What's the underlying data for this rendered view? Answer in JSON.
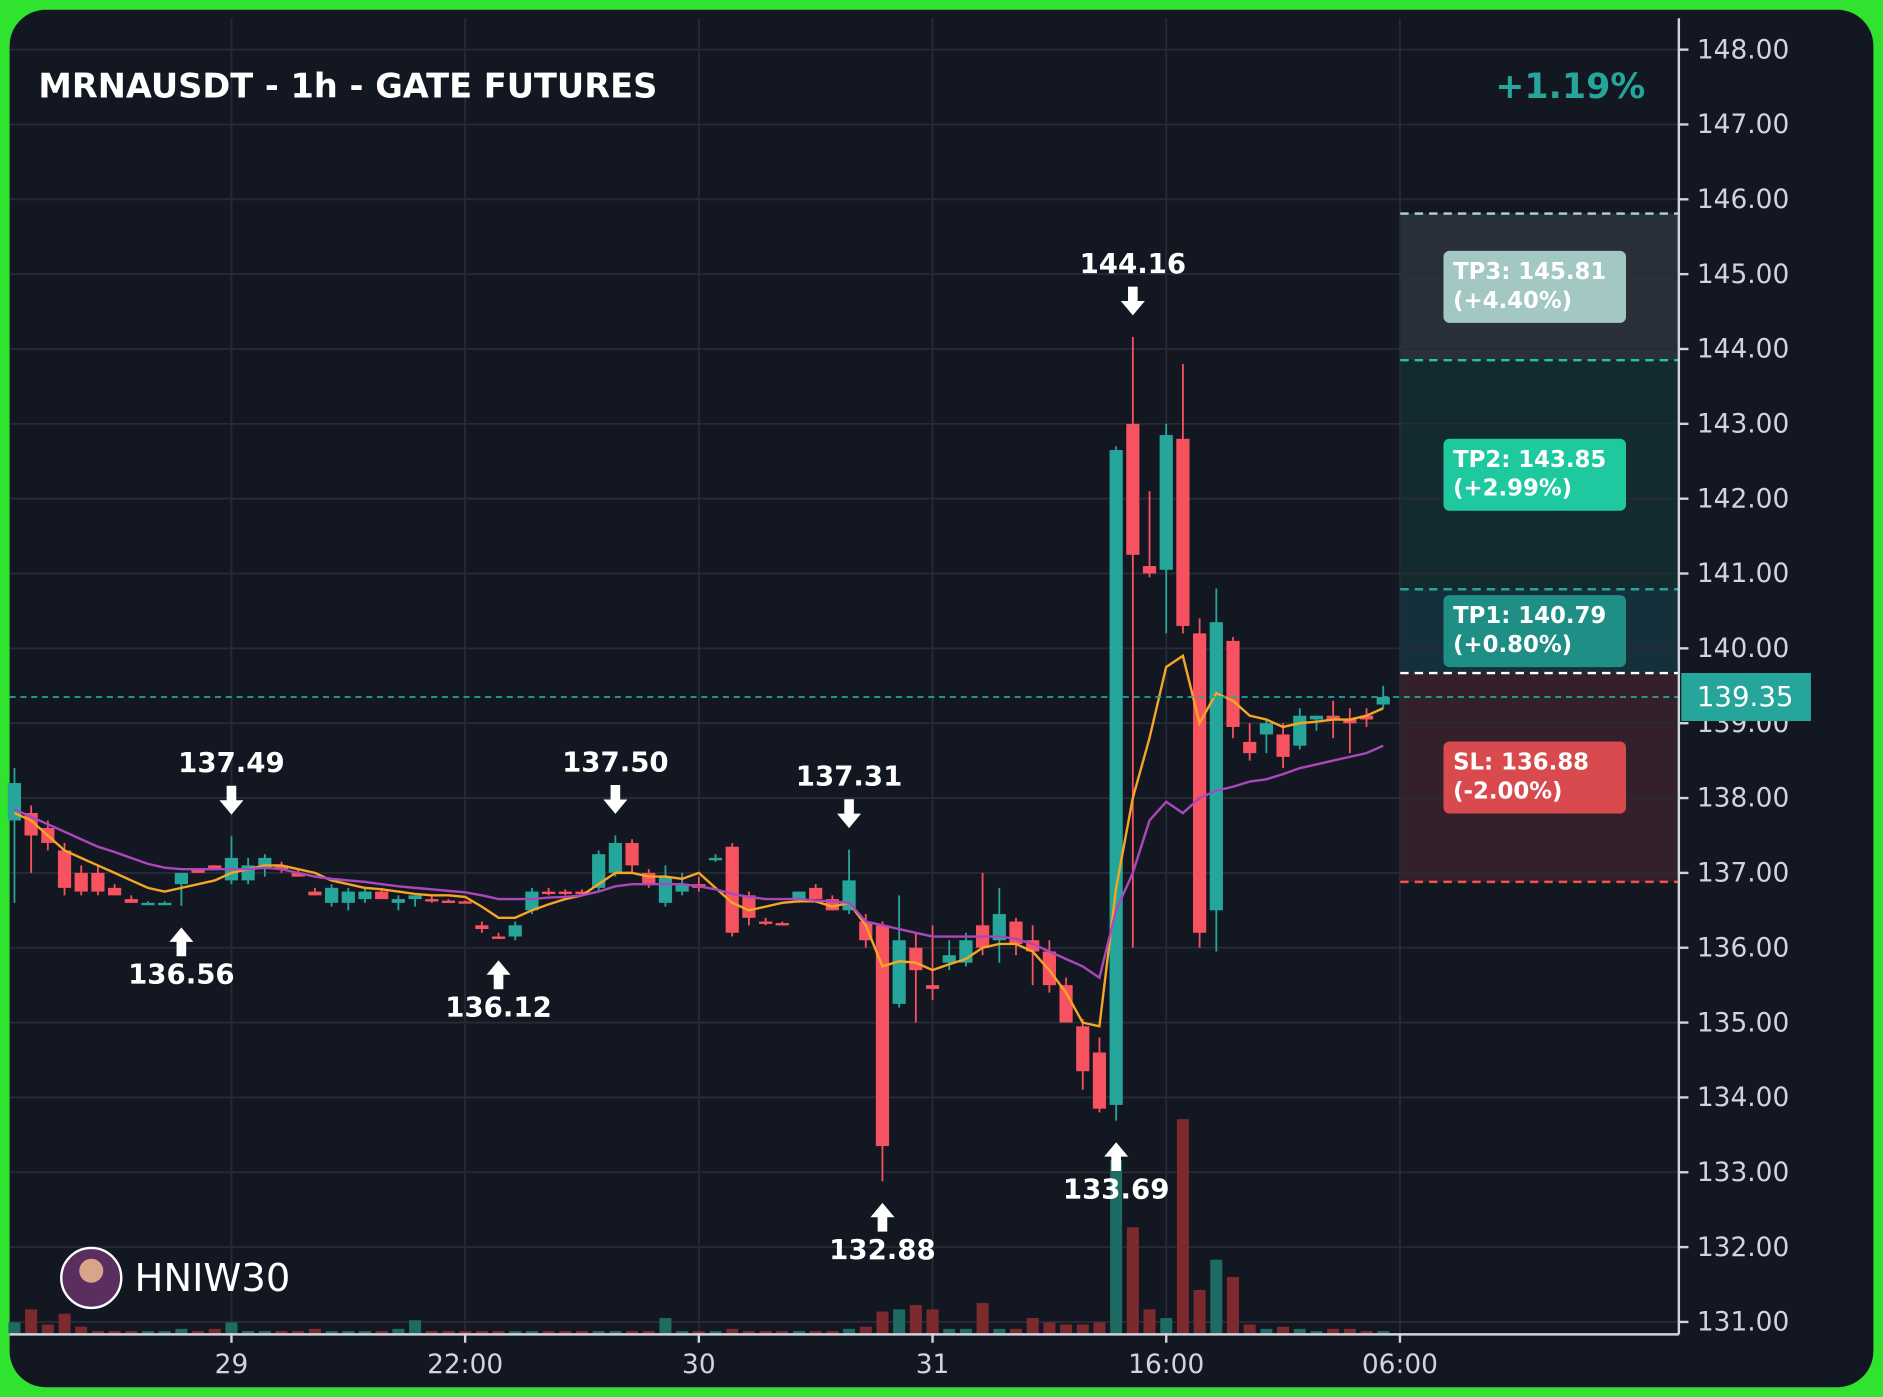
{
  "chart_data": {
    "type": "candlestick",
    "title": "MRNAUSDT - 1h - GATE FUTURES",
    "change": "+1.19%",
    "watermark": "HNIW30",
    "up_color": "#26a69a",
    "down_color": "#f7525f",
    "ylim": [
      130.85,
      148.42
    ],
    "xlim": [
      -0.29,
      99.71
    ],
    "grid": true,
    "yticks": [
      {
        "value": 131,
        "label": "131.00"
      },
      {
        "value": 132,
        "label": "132.00"
      },
      {
        "value": 133,
        "label": "133.00"
      },
      {
        "value": 134,
        "label": "134.00"
      },
      {
        "value": 135,
        "label": "135.00"
      },
      {
        "value": 136,
        "label": "136.00"
      },
      {
        "value": 137,
        "label": "137.00"
      },
      {
        "value": 138,
        "label": "138.00"
      },
      {
        "value": 139,
        "label": "139.00"
      },
      {
        "value": 140,
        "label": "140.00"
      },
      {
        "value": 141,
        "label": "141.00"
      },
      {
        "value": 142,
        "label": "142.00"
      },
      {
        "value": 143,
        "label": "143.00"
      },
      {
        "value": 144,
        "label": "144.00"
      },
      {
        "value": 145,
        "label": "145.00"
      },
      {
        "value": 146,
        "label": "146.00"
      },
      {
        "value": 147,
        "label": "147.00"
      },
      {
        "value": 148,
        "label": "148.00"
      }
    ],
    "xticks": [
      {
        "value": 13,
        "label": "29"
      },
      {
        "value": 27,
        "label": "22:00"
      },
      {
        "value": 41,
        "label": "30"
      },
      {
        "value": 55,
        "label": "31"
      },
      {
        "value": 69,
        "label": "16:00"
      },
      {
        "value": 83,
        "label": "06:00"
      }
    ],
    "ohlc": [
      [
        137.7,
        138.4,
        136.6,
        138.2
      ],
      [
        137.8,
        137.9,
        137.0,
        137.5
      ],
      [
        137.6,
        137.7,
        137.3,
        137.4
      ],
      [
        137.3,
        137.4,
        136.7,
        136.8
      ],
      [
        137.0,
        137.1,
        136.7,
        136.75
      ],
      [
        137.0,
        137.1,
        136.7,
        136.75
      ],
      [
        136.8,
        136.85,
        136.7,
        136.7
      ],
      [
        136.65,
        136.7,
        136.6,
        136.6
      ],
      [
        136.6,
        136.62,
        136.58,
        136.6
      ],
      [
        136.6,
        136.62,
        136.58,
        136.6
      ],
      [
        136.85,
        137.0,
        136.56,
        137.0
      ],
      [
        137.05,
        137.05,
        137.0,
        137.0
      ],
      [
        137.1,
        137.1,
        137.05,
        137.05
      ],
      [
        136.9,
        137.49,
        136.85,
        137.2
      ],
      [
        136.9,
        137.2,
        136.85,
        137.1
      ],
      [
        137.05,
        137.25,
        136.95,
        137.2
      ],
      [
        137.1,
        137.15,
        137.0,
        137.05
      ],
      [
        137.0,
        137.05,
        136.95,
        136.95
      ],
      [
        136.75,
        136.8,
        136.7,
        136.7
      ],
      [
        136.6,
        136.85,
        136.55,
        136.8
      ],
      [
        136.6,
        136.8,
        136.5,
        136.75
      ],
      [
        136.65,
        136.8,
        136.6,
        136.75
      ],
      [
        136.75,
        136.8,
        136.65,
        136.65
      ],
      [
        136.6,
        136.7,
        136.5,
        136.65
      ],
      [
        136.65,
        136.7,
        136.55,
        136.7
      ],
      [
        136.65,
        136.7,
        136.6,
        136.62
      ],
      [
        136.63,
        136.65,
        136.6,
        136.62
      ],
      [
        136.62,
        136.63,
        136.6,
        136.6
      ],
      [
        136.3,
        136.35,
        136.2,
        136.25
      ],
      [
        136.15,
        136.2,
        136.12,
        136.12
      ],
      [
        136.15,
        136.35,
        136.1,
        136.3
      ],
      [
        136.5,
        136.8,
        136.45,
        136.75
      ],
      [
        136.75,
        136.8,
        136.7,
        136.72
      ],
      [
        136.75,
        136.78,
        136.7,
        136.72
      ],
      [
        136.75,
        136.78,
        136.72,
        136.73
      ],
      [
        136.8,
        137.3,
        136.75,
        137.25
      ],
      [
        137.0,
        137.5,
        136.95,
        137.4
      ],
      [
        137.4,
        137.45,
        137.0,
        137.1
      ],
      [
        137.0,
        137.05,
        136.8,
        136.85
      ],
      [
        136.6,
        137.1,
        136.55,
        136.95
      ],
      [
        136.75,
        137.0,
        136.7,
        136.85
      ],
      [
        136.85,
        136.95,
        136.75,
        136.8
      ],
      [
        137.2,
        137.25,
        137.15,
        137.2
      ],
      [
        137.35,
        137.4,
        136.15,
        136.2
      ],
      [
        136.7,
        136.75,
        136.3,
        136.4
      ],
      [
        136.35,
        136.4,
        136.3,
        136.32
      ],
      [
        136.33,
        136.35,
        136.3,
        136.32
      ],
      [
        136.65,
        136.75,
        136.6,
        136.75
      ],
      [
        136.8,
        136.85,
        136.65,
        136.65
      ],
      [
        136.65,
        136.7,
        136.5,
        136.5
      ],
      [
        136.5,
        137.31,
        136.45,
        136.9
      ],
      [
        136.35,
        136.45,
        136.0,
        136.1
      ],
      [
        136.3,
        136.35,
        132.88,
        133.35
      ],
      [
        135.25,
        136.7,
        135.2,
        136.1
      ],
      [
        136.0,
        136.2,
        135.0,
        135.7
      ],
      [
        135.5,
        136.3,
        135.3,
        135.45
      ],
      [
        135.8,
        136.1,
        135.7,
        135.9
      ],
      [
        135.8,
        136.2,
        135.75,
        136.1
      ],
      [
        136.3,
        137.0,
        135.9,
        136.0
      ],
      [
        136.1,
        136.8,
        135.8,
        136.45
      ],
      [
        136.35,
        136.4,
        135.9,
        136.05
      ],
      [
        136.1,
        136.3,
        135.5,
        135.95
      ],
      [
        135.95,
        136.1,
        135.4,
        135.5
      ],
      [
        135.5,
        135.6,
        135.0,
        135.0
      ],
      [
        134.95,
        135.05,
        134.1,
        134.35
      ],
      [
        134.6,
        134.8,
        133.8,
        133.85
      ],
      [
        133.9,
        142.7,
        133.69,
        142.65
      ],
      [
        143.0,
        144.16,
        136.0,
        141.25
      ],
      [
        141.1,
        142.1,
        140.95,
        141.0
      ],
      [
        141.05,
        143.0,
        140.2,
        142.85
      ],
      [
        142.8,
        143.8,
        140.2,
        140.3
      ],
      [
        140.2,
        140.4,
        136.0,
        136.2
      ],
      [
        136.5,
        140.8,
        135.95,
        140.35
      ],
      [
        140.1,
        140.15,
        138.8,
        138.95
      ],
      [
        138.75,
        139.0,
        138.5,
        138.6
      ],
      [
        138.85,
        139.05,
        138.6,
        139.0
      ],
      [
        138.85,
        139.0,
        138.4,
        138.55
      ],
      [
        138.7,
        139.2,
        138.65,
        139.1
      ],
      [
        139.05,
        139.1,
        138.9,
        139.1
      ],
      [
        139.1,
        139.3,
        138.8,
        139.05
      ],
      [
        139.05,
        139.2,
        138.6,
        139.0
      ],
      [
        139.1,
        139.2,
        138.95,
        139.05
      ],
      [
        139.25,
        139.5,
        139.2,
        139.35
      ]
    ],
    "volume": [
      10,
      22,
      8,
      18,
      6,
      2,
      2,
      2,
      2,
      2,
      4,
      2,
      4,
      10,
      2,
      2,
      2,
      2,
      4,
      2,
      2,
      2,
      2,
      4,
      12,
      2,
      2,
      2,
      2,
      2,
      2,
      2,
      2,
      2,
      2,
      2,
      2,
      2,
      2,
      14,
      2,
      2,
      2,
      4,
      2,
      2,
      2,
      2,
      2,
      2,
      4,
      6,
      20,
      22,
      26,
      22,
      4,
      4,
      28,
      4,
      4,
      14,
      10,
      8,
      8,
      10,
      160,
      98,
      22,
      14,
      198,
      40,
      68,
      52,
      8,
      4,
      6,
      4,
      2,
      4,
      4,
      2,
      2
    ],
    "lines": [
      {
        "color": "#f5a623",
        "values": [
          137.8,
          137.7,
          137.5,
          137.3,
          137.2,
          137.1,
          137.0,
          136.9,
          136.8,
          136.75,
          136.8,
          136.85,
          136.9,
          137.0,
          137.05,
          137.1,
          137.1,
          137.05,
          137.0,
          136.9,
          136.85,
          136.8,
          136.78,
          136.75,
          136.72,
          136.7,
          136.7,
          136.68,
          136.55,
          136.4,
          136.4,
          136.5,
          136.58,
          136.65,
          136.7,
          136.85,
          137.0,
          137.0,
          136.95,
          136.95,
          136.92,
          137.0,
          136.8,
          136.6,
          136.5,
          136.55,
          136.6,
          136.62,
          136.62,
          136.55,
          136.6,
          136.3,
          135.75,
          135.82,
          135.8,
          135.7,
          135.78,
          135.85,
          136.0,
          136.05,
          136.05,
          135.95,
          135.7,
          135.4,
          135.0,
          134.95,
          136.8,
          138.0,
          138.8,
          139.75,
          139.9,
          139.0,
          139.4,
          139.3,
          139.1,
          139.05,
          138.95,
          139.0,
          139.02,
          139.05,
          139.05,
          139.1,
          139.2
        ]
      },
      {
        "color": "#ab47bc",
        "values": [
          137.85,
          137.75,
          137.65,
          137.55,
          137.45,
          137.35,
          137.28,
          137.2,
          137.12,
          137.07,
          137.05,
          137.05,
          137.05,
          137.05,
          137.05,
          137.07,
          137.05,
          137.0,
          136.95,
          136.92,
          136.9,
          136.88,
          136.85,
          136.82,
          136.8,
          136.78,
          136.76,
          136.74,
          136.7,
          136.65,
          136.65,
          136.65,
          136.67,
          136.68,
          136.7,
          136.75,
          136.82,
          136.85,
          136.85,
          136.85,
          136.85,
          136.82,
          136.78,
          136.72,
          136.68,
          136.65,
          136.65,
          136.65,
          136.63,
          136.62,
          136.6,
          136.35,
          136.3,
          136.25,
          136.2,
          136.15,
          136.15,
          136.15,
          136.15,
          136.15,
          136.12,
          136.05,
          135.95,
          135.85,
          135.75,
          135.6,
          136.5,
          137.0,
          137.7,
          137.95,
          137.8,
          138.0,
          138.1,
          138.15,
          138.22,
          138.25,
          138.32,
          138.4,
          138.45,
          138.5,
          138.55,
          138.6,
          138.7
        ]
      }
    ],
    "annotations": [
      {
        "kind": "high",
        "value": 137.49,
        "label": "137.49"
      },
      {
        "kind": "low",
        "value": 136.56,
        "label": "136.56"
      },
      {
        "kind": "low",
        "value": 136.12,
        "label": "136.12"
      },
      {
        "kind": "high",
        "value": 137.5,
        "label": "137.50"
      },
      {
        "kind": "high",
        "value": 137.31,
        "label": "137.31"
      },
      {
        "kind": "low",
        "value": 132.88,
        "label": "132.88"
      },
      {
        "kind": "low",
        "value": 133.69,
        "label": "133.69"
      },
      {
        "kind": "high",
        "value": 144.16,
        "label": "144.16"
      }
    ],
    "last_price": {
      "value": 139.35,
      "label": "139.35",
      "color": "#26a69a"
    },
    "entry": {
      "value": 139.67,
      "color": "#ffffff"
    },
    "levels": [
      {
        "label": "TP3: 145.81",
        "pct": "(+4.40%)",
        "value": 145.81,
        "color": "#a3c7c3",
        "line": "#a8d8d0",
        "zone": "#2a3039"
      },
      {
        "label": "TP2: 143.85",
        "pct": "(+2.99%)",
        "value": 143.85,
        "color": "#1ec9a0",
        "line": "#1ec9a0",
        "zone": "#132b2e"
      },
      {
        "label": "TP1: 140.79",
        "pct": "(+0.80%)",
        "value": 140.79,
        "color": "#1f8f86",
        "line": "#26a69a",
        "zone": "#15303a"
      },
      {
        "label": "SL: 136.88",
        "pct": "(-2.00%)",
        "value": 136.88,
        "color": "#d84a4d",
        "line": "#ef5350",
        "zone": "#33202a"
      }
    ]
  }
}
